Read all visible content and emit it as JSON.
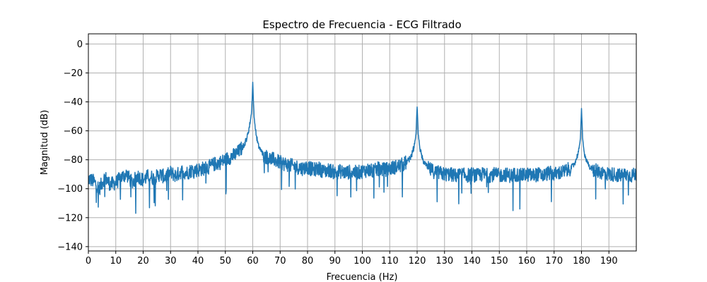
{
  "chart_data": {
    "type": "line",
    "title": "Espectro de Frecuencia - ECG Filtrado",
    "xlabel": "Frecuencia (Hz)",
    "ylabel": "Magnitud (dB)",
    "xlim": [
      0,
      200
    ],
    "ylim": [
      -143,
      7
    ],
    "xticks": [
      0,
      10,
      20,
      30,
      40,
      50,
      60,
      70,
      80,
      90,
      100,
      110,
      120,
      130,
      140,
      150,
      160,
      170,
      180,
      190
    ],
    "xtick_labels": [
      "0",
      "10",
      "20",
      "30",
      "40",
      "50",
      "60",
      "70",
      "80",
      "90",
      "100",
      "110",
      "120",
      "130",
      "140",
      "150",
      "160",
      "170",
      "180",
      "190"
    ],
    "yticks": [
      0,
      -20,
      -40,
      -60,
      -80,
      -100,
      -120,
      -140
    ],
    "ytick_labels": [
      "0",
      "−20",
      "−40",
      "−60",
      "−80",
      "−100",
      "−120",
      "−140"
    ],
    "grid": true,
    "color": "#1f77b4",
    "series": [
      {
        "x": [
          0,
          2,
          4,
          6,
          8,
          10,
          12,
          14,
          16,
          18,
          20,
          22,
          24,
          26,
          28,
          30,
          32,
          34,
          36,
          38,
          40,
          42,
          44,
          46,
          48,
          50,
          52,
          54,
          56,
          57,
          58,
          59,
          59.5,
          59.8,
          60,
          60.2,
          60.5,
          61,
          62,
          63,
          64,
          66,
          68,
          70,
          72,
          74,
          76,
          78,
          80,
          82,
          84,
          86,
          88,
          90,
          92,
          94,
          96,
          98,
          100,
          102,
          104,
          106,
          108,
          110,
          112,
          114,
          116,
          117,
          118,
          119,
          119.6,
          120,
          120.4,
          121,
          122,
          123,
          124,
          126,
          128,
          130,
          132,
          134,
          136,
          138,
          140,
          142,
          144,
          146,
          148,
          150,
          152,
          154,
          156,
          158,
          160,
          162,
          164,
          166,
          168,
          170,
          172,
          174,
          176,
          177,
          178,
          179,
          179.6,
          180,
          180.4,
          181,
          182,
          183,
          184,
          186,
          188,
          190,
          192,
          194,
          196,
          198,
          200
        ],
        "y": [
          -93,
          -95,
          -100,
          -92,
          -97,
          -96,
          -92,
          -90,
          -96,
          -91,
          -94,
          -91,
          -93,
          -90,
          -92,
          -89,
          -91,
          -88,
          -89,
          -87,
          -87,
          -86,
          -85,
          -83,
          -82,
          -80,
          -78,
          -76,
          -72,
          -69,
          -64,
          -55,
          -48,
          -38,
          -26,
          -38,
          -50,
          -60,
          -70,
          -74,
          -77,
          -79,
          -80,
          -82,
          -83,
          -84,
          -85,
          -86,
          -85,
          -87,
          -86,
          -88,
          -87,
          -89,
          -88,
          -89,
          -88,
          -89,
          -88,
          -87,
          -88,
          -86,
          -87,
          -86,
          -85,
          -84,
          -82,
          -80,
          -77,
          -70,
          -62,
          -43,
          -62,
          -72,
          -80,
          -83,
          -86,
          -88,
          -89,
          -90,
          -90,
          -91,
          -90,
          -91,
          -90,
          -91,
          -90,
          -91,
          -90,
          -91,
          -90,
          -91,
          -90,
          -91,
          -90,
          -91,
          -90,
          -91,
          -89,
          -90,
          -89,
          -88,
          -86,
          -84,
          -80,
          -74,
          -65,
          -45,
          -65,
          -75,
          -82,
          -85,
          -87,
          -88,
          -89,
          -90,
          -90,
          -91,
          -90,
          -91,
          -90
        ]
      }
    ]
  }
}
